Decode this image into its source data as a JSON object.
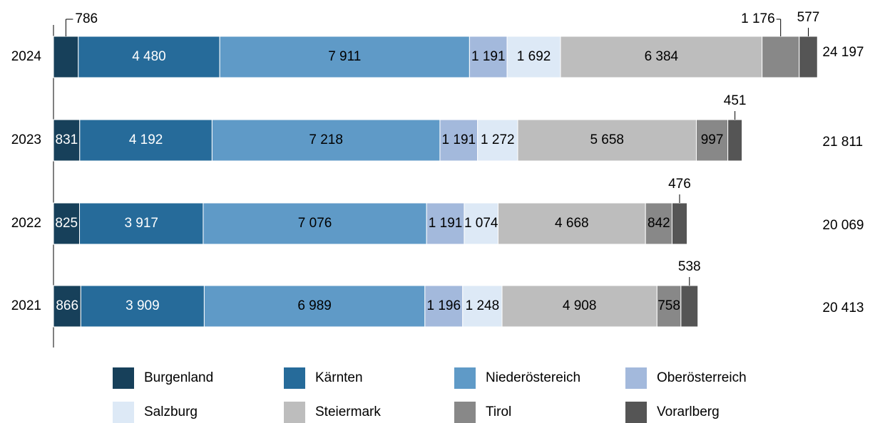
{
  "chart_data": {
    "type": "stacked_barh",
    "categories": [
      "2024",
      "2023",
      "2022",
      "2021"
    ],
    "xlim": [
      0,
      24200
    ],
    "legend": "bottom",
    "series": [
      {
        "name": "Burgenland",
        "color": "#17405a",
        "values": [
          786,
          831,
          825,
          866
        ],
        "value_labels": [
          "786",
          "831",
          "825",
          "866"
        ]
      },
      {
        "name": "Kärnten",
        "color": "#266b9a",
        "values": [
          4480,
          4192,
          3917,
          3909
        ],
        "value_labels": [
          "4 480",
          "4 192",
          "3 917",
          "3 909"
        ]
      },
      {
        "name": "Niederöstereich",
        "color": "#5f9ac7",
        "values": [
          7911,
          7218,
          7076,
          6989
        ],
        "value_labels": [
          "7 911",
          "7 218",
          "7 076",
          "6 989"
        ]
      },
      {
        "name": "Oberösterreich",
        "color": "#a3b9dc",
        "values": [
          1191,
          1191,
          1191,
          1196
        ],
        "value_labels": [
          "1 191",
          "1 191",
          "1 191",
          "1 196"
        ]
      },
      {
        "name": "Salzburg",
        "color": "#dde9f6",
        "values": [
          1692,
          1272,
          1074,
          1248
        ],
        "value_labels": [
          "1 692",
          "1 272",
          "1 074",
          "1 248"
        ]
      },
      {
        "name": "Steiermark",
        "color": "#bdbdbd",
        "values": [
          6384,
          5658,
          4668,
          4908
        ],
        "value_labels": [
          "6 384",
          "5 658",
          "4 668",
          "4 908"
        ]
      },
      {
        "name": "Tirol",
        "color": "#888888",
        "values": [
          1176,
          997,
          842,
          758
        ],
        "value_labels": [
          "1 176",
          "997",
          "842",
          "758"
        ]
      },
      {
        "name": "Vorarlberg",
        "color": "#555555",
        "values": [
          577,
          451,
          476,
          538
        ],
        "value_labels": [
          "577",
          "451",
          "476",
          "538"
        ]
      }
    ],
    "totals": [
      24197,
      21811,
      20069,
      20413
    ],
    "total_labels": [
      "24 197",
      "21 811",
      "20 069",
      "20 413"
    ]
  }
}
